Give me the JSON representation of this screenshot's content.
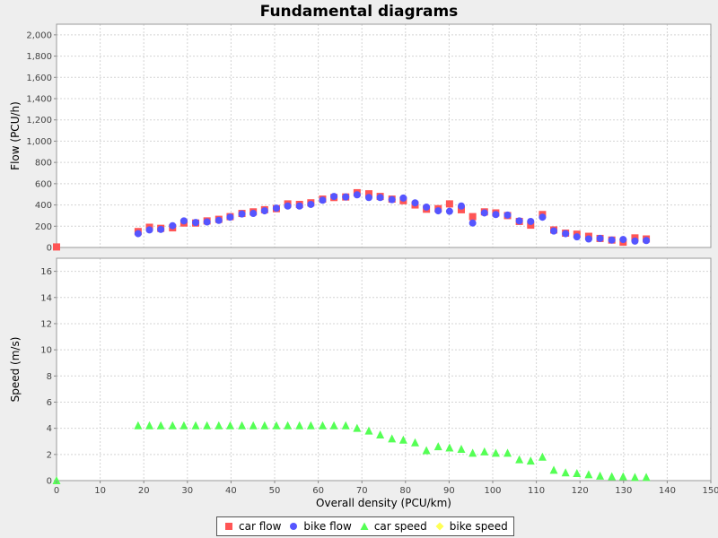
{
  "chart_data": {
    "type": "scatter",
    "title": "Fundamental diagrams",
    "xlabel": "Overall density (PCU/km)",
    "xlim": [
      0,
      150
    ],
    "x_ticks": [
      "0",
      "10",
      "20",
      "30",
      "40",
      "50",
      "60",
      "70",
      "80",
      "90",
      "100",
      "110",
      "120",
      "130",
      "140",
      "150"
    ],
    "grid": true,
    "legend_position": "bottom",
    "panels": [
      {
        "ylabel": "Flow (PCU/h)",
        "ylim": [
          0,
          2100
        ],
        "y_ticks": [
          "0",
          "200",
          "400",
          "600",
          "800",
          "1,000",
          "1,200",
          "1,400",
          "1,600",
          "1,800",
          "2,000"
        ],
        "series": [
          {
            "name": "car flow",
            "marker": "square",
            "color": "#ff5555",
            "points": [
              [
                0,
                5
              ],
              [
                18.7,
                150
              ],
              [
                21.3,
                190
              ],
              [
                23.9,
                180
              ],
              [
                26.6,
                185
              ],
              [
                29.2,
                230
              ],
              [
                31.9,
                230
              ],
              [
                34.5,
                250
              ],
              [
                37.2,
                265
              ],
              [
                39.8,
                290
              ],
              [
                42.5,
                320
              ],
              [
                45.1,
                335
              ],
              [
                47.7,
                355
              ],
              [
                50.4,
                365
              ],
              [
                53,
                410
              ],
              [
                55.7,
                405
              ],
              [
                58.3,
                420
              ],
              [
                61,
                455
              ],
              [
                63.6,
                470
              ],
              [
                66.3,
                475
              ],
              [
                68.9,
                515
              ],
              [
                71.6,
                505
              ],
              [
                74.2,
                480
              ],
              [
                76.9,
                455
              ],
              [
                79.5,
                440
              ],
              [
                82.2,
                400
              ],
              [
                84.8,
                360
              ],
              [
                87.5,
                365
              ],
              [
                90.1,
                410
              ],
              [
                92.8,
                355
              ],
              [
                95.4,
                290
              ],
              [
                98.1,
                335
              ],
              [
                100.7,
                325
              ],
              [
                103.4,
                300
              ],
              [
                106.1,
                245
              ],
              [
                108.7,
                210
              ],
              [
                111.4,
                310
              ],
              [
                114,
                165
              ],
              [
                116.7,
                135
              ],
              [
                119.3,
                125
              ],
              [
                122,
                105
              ],
              [
                124.6,
                85
              ],
              [
                127.3,
                70
              ],
              [
                129.9,
                50
              ],
              [
                132.6,
                90
              ],
              [
                135.2,
                80
              ]
            ]
          },
          {
            "name": "bike flow",
            "marker": "circle",
            "color": "#5555ff",
            "points": [
              [
                18.7,
                130
              ],
              [
                21.3,
                165
              ],
              [
                23.9,
                170
              ],
              [
                26.6,
                205
              ],
              [
                29.2,
                250
              ],
              [
                31.9,
                235
              ],
              [
                34.5,
                240
              ],
              [
                37.2,
                255
              ],
              [
                39.8,
                285
              ],
              [
                42.5,
                315
              ],
              [
                45.1,
                320
              ],
              [
                47.7,
                345
              ],
              [
                50.4,
                370
              ],
              [
                53,
                390
              ],
              [
                55.7,
                390
              ],
              [
                58.3,
                405
              ],
              [
                61,
                445
              ],
              [
                63.6,
                480
              ],
              [
                66.3,
                475
              ],
              [
                68.9,
                495
              ],
              [
                71.6,
                470
              ],
              [
                74.2,
                470
              ],
              [
                76.9,
                450
              ],
              [
                79.5,
                465
              ],
              [
                82.2,
                420
              ],
              [
                84.8,
                380
              ],
              [
                87.5,
                345
              ],
              [
                90.1,
                340
              ],
              [
                92.8,
                390
              ],
              [
                95.4,
                230
              ],
              [
                98.1,
                325
              ],
              [
                100.7,
                310
              ],
              [
                103.4,
                305
              ],
              [
                106.1,
                250
              ],
              [
                108.7,
                245
              ],
              [
                111.4,
                285
              ],
              [
                114,
                155
              ],
              [
                116.7,
                130
              ],
              [
                119.3,
                100
              ],
              [
                122,
                80
              ],
              [
                124.6,
                85
              ],
              [
                127.3,
                70
              ],
              [
                129.9,
                75
              ],
              [
                132.6,
                60
              ],
              [
                135.2,
                65
              ]
            ]
          }
        ]
      },
      {
        "ylabel": "Speed (m/s)",
        "ylim": [
          0,
          17
        ],
        "y_ticks": [
          "0",
          "2",
          "4",
          "6",
          "8",
          "10",
          "12",
          "14",
          "16"
        ],
        "series": [
          {
            "name": "car speed",
            "marker": "triangle",
            "color": "#55ff55",
            "points": [
              [
                0,
                0
              ],
              [
                18.7,
                4.2
              ],
              [
                21.3,
                4.2
              ],
              [
                23.9,
                4.2
              ],
              [
                26.6,
                4.2
              ],
              [
                29.2,
                4.2
              ],
              [
                31.9,
                4.2
              ],
              [
                34.5,
                4.2
              ],
              [
                37.2,
                4.2
              ],
              [
                39.8,
                4.2
              ],
              [
                42.5,
                4.2
              ],
              [
                45.1,
                4.2
              ],
              [
                47.7,
                4.2
              ],
              [
                50.4,
                4.2
              ],
              [
                53,
                4.2
              ],
              [
                55.7,
                4.2
              ],
              [
                58.3,
                4.2
              ],
              [
                61,
                4.2
              ],
              [
                63.6,
                4.2
              ],
              [
                66.3,
                4.2
              ],
              [
                68.9,
                4.0
              ],
              [
                71.6,
                3.8
              ],
              [
                74.2,
                3.5
              ],
              [
                76.9,
                3.2
              ],
              [
                79.5,
                3.1
              ],
              [
                82.2,
                2.9
              ],
              [
                84.8,
                2.3
              ],
              [
                87.5,
                2.6
              ],
              [
                90.1,
                2.5
              ],
              [
                92.8,
                2.4
              ],
              [
                95.4,
                2.1
              ],
              [
                98.1,
                2.2
              ],
              [
                100.7,
                2.1
              ],
              [
                103.4,
                2.1
              ],
              [
                106.1,
                1.6
              ],
              [
                108.7,
                1.5
              ],
              [
                111.4,
                1.8
              ],
              [
                114,
                0.8
              ],
              [
                116.7,
                0.6
              ],
              [
                119.3,
                0.55
              ],
              [
                122,
                0.45
              ],
              [
                124.6,
                0.35
              ],
              [
                127.3,
                0.3
              ],
              [
                129.9,
                0.3
              ],
              [
                132.6,
                0.25
              ],
              [
                135.2,
                0.25
              ]
            ]
          },
          {
            "name": "bike speed",
            "marker": "diamond",
            "color": "#ffff55",
            "points": []
          }
        ]
      }
    ]
  },
  "legend": {
    "items": [
      {
        "label": "car flow",
        "marker": "square",
        "color": "#ff5555"
      },
      {
        "label": "bike flow",
        "marker": "circle",
        "color": "#5555ff"
      },
      {
        "label": "car speed",
        "marker": "triangle",
        "color": "#55ff55"
      },
      {
        "label": "bike speed",
        "marker": "diamond",
        "color": "#ffff55"
      }
    ]
  }
}
